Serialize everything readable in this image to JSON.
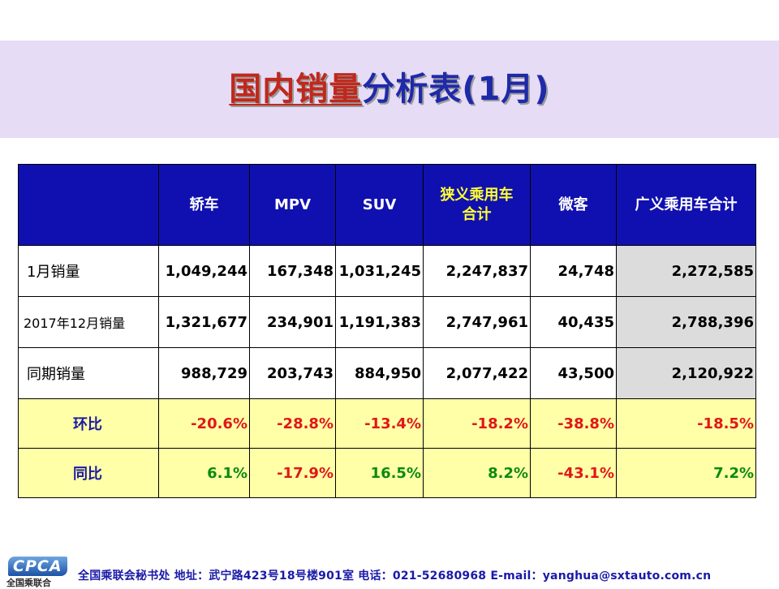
{
  "title": {
    "part1": "国内销量",
    "part2": "分析表(1月)"
  },
  "table": {
    "headers": [
      "",
      "轿车",
      "MPV",
      "SUV",
      "狭义乘用车合计",
      "微客",
      "广义乘用车合计"
    ],
    "rows": [
      {
        "label": "1月销量",
        "values": [
          "1,049,244",
          "167,348",
          "1,031,245",
          "2,247,837",
          "24,748",
          "2,272,585"
        ]
      },
      {
        "label": "2017年12月销量",
        "values": [
          "1,321,677",
          "234,901",
          "1,191,383",
          "2,747,961",
          "40,435",
          "2,788,396"
        ]
      },
      {
        "label": "同期销量",
        "values": [
          "988,729",
          "203,743",
          "884,950",
          "2,077,422",
          "43,500",
          "2,120,922"
        ]
      },
      {
        "label": "环比",
        "values": [
          "-20.6%",
          "-28.8%",
          "-13.4%",
          "-18.2%",
          "-38.8%",
          "-18.5%"
        ]
      },
      {
        "label": "同比",
        "values": [
          "6.1%",
          "-17.9%",
          "16.5%",
          "8.2%",
          "-43.1%",
          "7.2%"
        ]
      }
    ]
  },
  "colors": {
    "header_bg": "#1010b0",
    "title_red": "#c0281c",
    "title_blue": "#1f2aa8",
    "negative": "#e01818",
    "positive": "#0d8a10",
    "pct_row_bg": "#ffffa8",
    "total_bg": "#dcdcdc"
  },
  "footer": {
    "logo_text": "CPCA",
    "logo_sub": "全国乘联合",
    "contact": "全国乘联会秘书处  地址：武宁路423号18号楼901室    电话：021-52680968   E-mail：yanghua@sxtauto.com.cn"
  }
}
